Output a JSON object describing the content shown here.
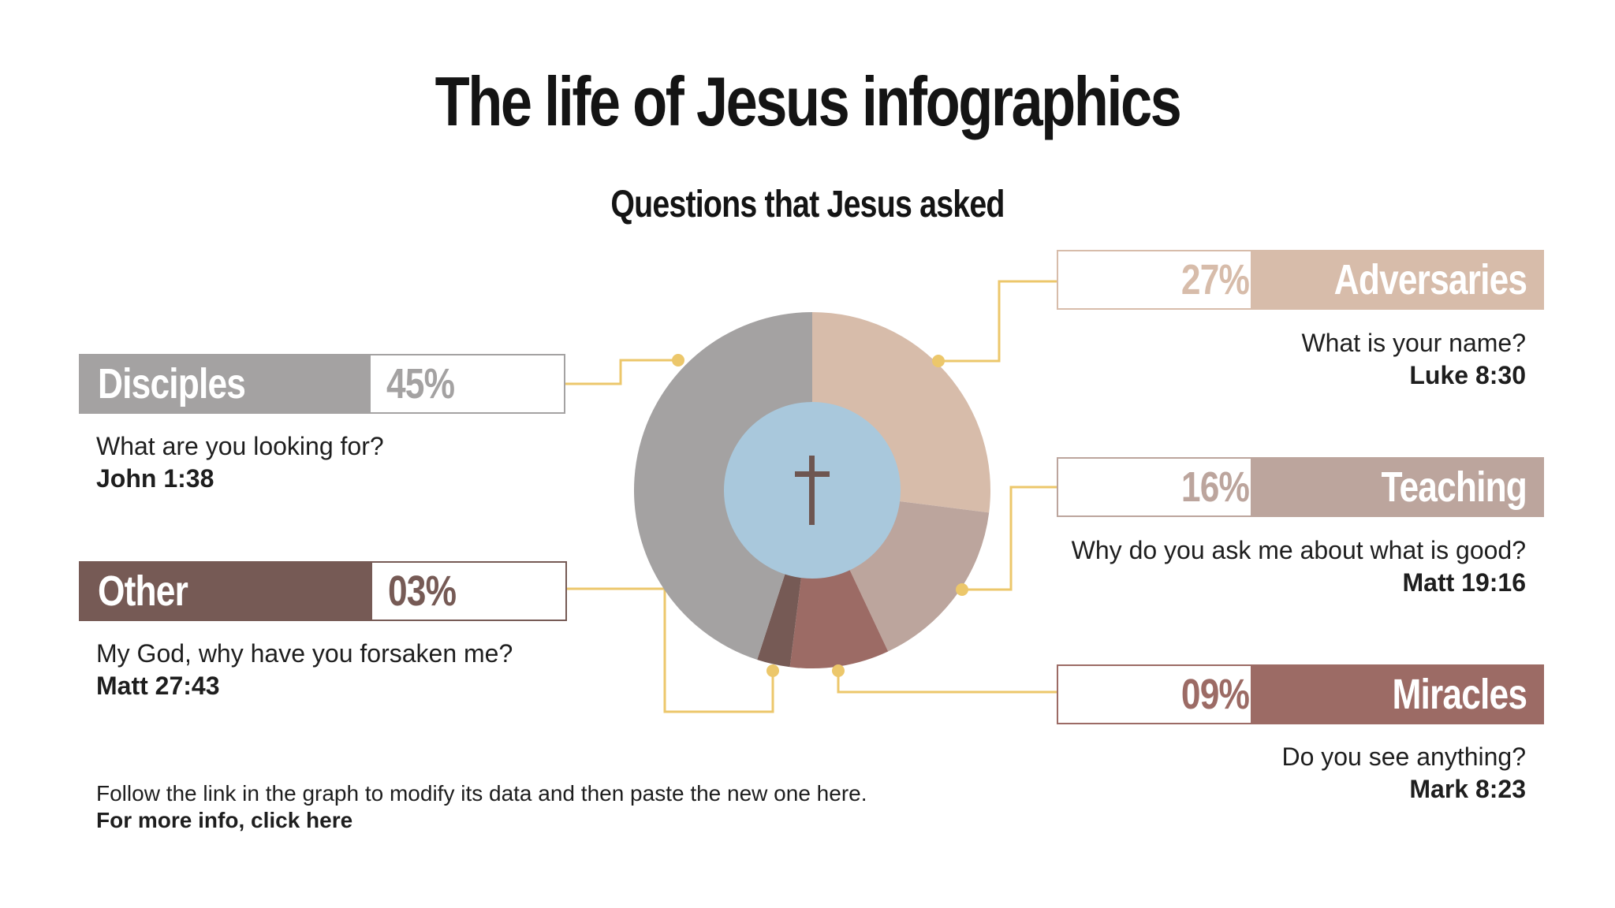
{
  "title": "The life of Jesus infographics",
  "subtitle": "Questions that Jesus asked",
  "footnote": {
    "text": "Follow the link in the graph to modify its data and then paste  the new one here. ",
    "link": "For more info, click here"
  },
  "center_icon": "cross-icon",
  "chart_data": {
    "type": "pie",
    "title": "Questions that Jesus asked",
    "slices": [
      {
        "label": "Adversaries",
        "value": 27,
        "percent_label": "27%",
        "question": "What is your name?",
        "reference": "Luke 8:30",
        "color": "#d7bcaa"
      },
      {
        "label": "Teaching",
        "value": 16,
        "percent_label": "16%",
        "question": "Why do you ask me about what is good?",
        "reference": "Matt 19:16",
        "color": "#bca59d"
      },
      {
        "label": "Miracles",
        "value": 9,
        "percent_label": "09%",
        "question": "Do you see anything?",
        "reference": "Mark 8:23",
        "color": "#9c6b65"
      },
      {
        "label": "Other",
        "value": 3,
        "percent_label": "03%",
        "question": "My God, why have you forsaken me?",
        "reference": "Matt 27:43",
        "color": "#765a55"
      },
      {
        "label": "Disciples",
        "value": 45,
        "percent_label": "45%",
        "question": "What are you looking for?",
        "reference": "John 1:38",
        "color": "#a4a2a2"
      }
    ],
    "center_color": "#a9c8dc",
    "connector_color": "#ecc76b"
  }
}
